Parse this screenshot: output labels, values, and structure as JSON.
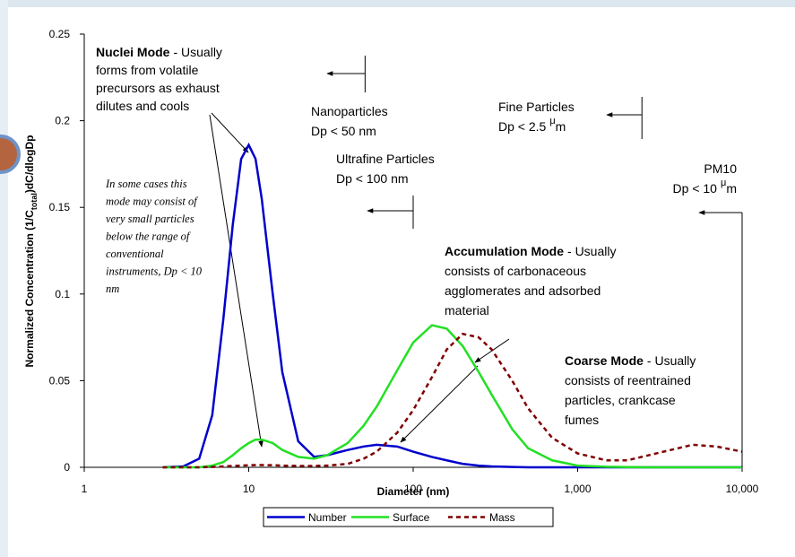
{
  "chart_data": {
    "type": "line",
    "x_label": "Diameter (nm)",
    "y_label_parts": [
      "Normalized Concentration (1/C",
      "total",
      ")dC/dlogDp"
    ],
    "log_x": true,
    "xlim": [
      1,
      10000
    ],
    "xticks": [
      1,
      10,
      100,
      {
        "value": 1000,
        "label": "1,000"
      },
      {
        "value": 10000,
        "label": "10,000"
      }
    ],
    "ylim": [
      0,
      0.25
    ],
    "yticks": [
      0,
      0.05,
      0.1,
      0.15,
      0.2,
      0.25
    ],
    "x": [
      3,
      4,
      5,
      6,
      7,
      8,
      9,
      10,
      11,
      12,
      14,
      16,
      20,
      25,
      30,
      40,
      50,
      60,
      80,
      100,
      130,
      160,
      200,
      250,
      300,
      400,
      500,
      700,
      1000,
      1500,
      2000,
      3000,
      5000,
      7000,
      10000
    ],
    "series": [
      {
        "name": "Number",
        "color": "#0000cc",
        "dash": false,
        "values": [
          0,
          0.0005,
          0.005,
          0.03,
          0.085,
          0.14,
          0.178,
          0.186,
          0.178,
          0.155,
          0.1,
          0.055,
          0.015,
          0.006,
          0.007,
          0.01,
          0.012,
          0.013,
          0.012,
          0.009,
          0.006,
          0.004,
          0.002,
          0.001,
          0.0005,
          0.0002,
          0,
          0,
          0,
          0,
          0,
          0,
          0,
          0,
          0
        ]
      },
      {
        "name": "Surface",
        "color": "#22e022",
        "dash": false,
        "values": [
          0,
          0,
          0,
          0.001,
          0.003,
          0.007,
          0.011,
          0.014,
          0.016,
          0.016,
          0.014,
          0.01,
          0.006,
          0.005,
          0.007,
          0.014,
          0.024,
          0.035,
          0.056,
          0.072,
          0.082,
          0.08,
          0.07,
          0.055,
          0.042,
          0.022,
          0.011,
          0.004,
          0.001,
          0.0003,
          0.0001,
          0,
          0,
          0,
          0
        ]
      },
      {
        "name": "Mass",
        "color": "#800000",
        "dash": true,
        "values": [
          0,
          0,
          0,
          0.0002,
          0.0005,
          0.0008,
          0.001,
          0.0012,
          0.0013,
          0.0013,
          0.0012,
          0.001,
          0.0008,
          0.0008,
          0.001,
          0.002,
          0.005,
          0.009,
          0.02,
          0.033,
          0.052,
          0.068,
          0.077,
          0.075,
          0.068,
          0.05,
          0.034,
          0.017,
          0.008,
          0.004,
          0.004,
          0.008,
          0.013,
          0.012,
          0.009
        ]
      }
    ],
    "annotations": [
      {
        "title": "Nuclei Mode",
        "lines": [
          "- Usually",
          "forms from volatile",
          "precursors as exhaust",
          "dilutes and cools"
        ]
      },
      {
        "lines": [
          "In some cases this",
          "mode may consist of",
          "very small particles",
          "below the range of",
          "conventional",
          "instruments, Dp < 10",
          "nm"
        ],
        "color": "#e03028"
      },
      {
        "title": "Accumulation Mode",
        "lines": [
          "- Usually",
          "consists of carbonaceous",
          "agglomerates and adsorbed",
          "material"
        ]
      },
      {
        "title": "Coarse Mode",
        "lines": [
          "- Usually",
          "consists of reentrained",
          "particles, crankcase",
          "fumes"
        ]
      }
    ],
    "size_limits": [
      {
        "lines": [
          "Nanoparticles",
          "Dp < 50 nm"
        ],
        "x": 51
      },
      {
        "lines": [
          "Ultrafine Particles",
          "Dp < 100 nm"
        ],
        "x": 100
      },
      {
        "lines": [
          "Fine Particles",
          [
            "Dp < 2.5",
            "μ",
            "m"
          ]
        ],
        "x": 2460
      },
      {
        "lines": [
          "PM10",
          [
            "Dp < 10",
            "μ",
            "m"
          ]
        ],
        "x": 10000
      }
    ]
  }
}
